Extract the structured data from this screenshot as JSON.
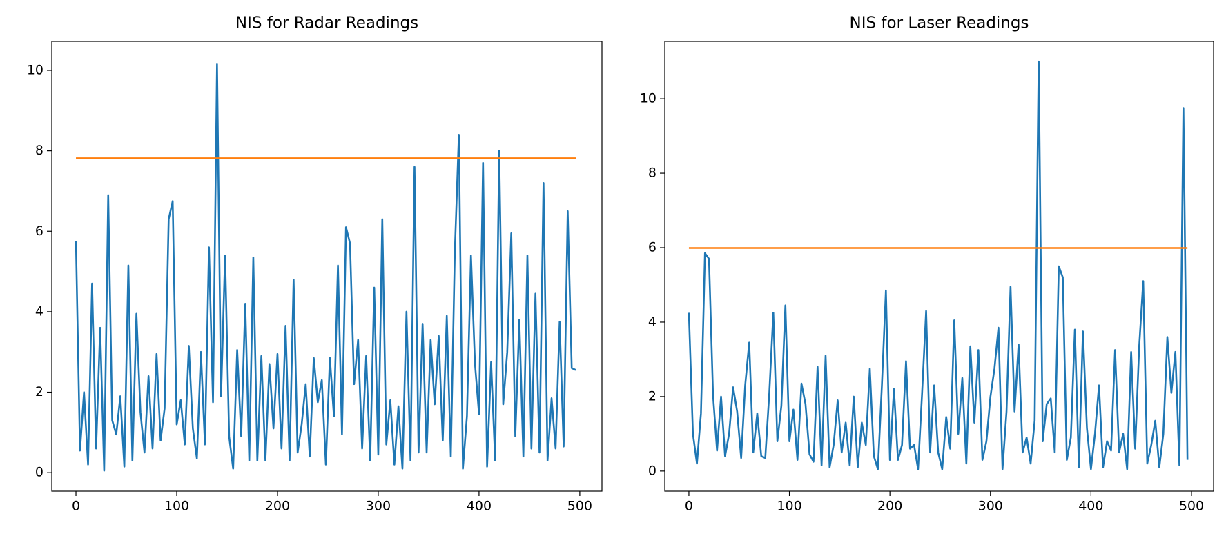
{
  "chart_data": [
    {
      "type": "line",
      "title": "NIS for Radar Readings",
      "xlim": [
        -24,
        522
      ],
      "xticks": [
        0,
        100,
        200,
        300,
        400,
        500
      ],
      "ylim": [
        -0.46,
        10.72
      ],
      "yticks": [
        0,
        2,
        4,
        6,
        8,
        10
      ],
      "series": [
        {
          "color": "#1f77b4",
          "x": [
            0,
            4,
            8,
            12,
            16,
            20,
            24,
            28,
            32,
            36,
            40,
            44,
            48,
            52,
            56,
            60,
            64,
            68,
            72,
            76,
            80,
            84,
            88,
            92,
            96,
            100,
            104,
            108,
            112,
            116,
            120,
            124,
            128,
            132,
            136,
            140,
            144,
            148,
            152,
            156,
            160,
            164,
            168,
            172,
            176,
            180,
            184,
            188,
            192,
            196,
            200,
            204,
            208,
            212,
            216,
            220,
            224,
            228,
            232,
            236,
            240,
            244,
            248,
            252,
            256,
            260,
            264,
            268,
            272,
            276,
            280,
            284,
            288,
            292,
            296,
            300,
            304,
            308,
            312,
            316,
            320,
            324,
            328,
            332,
            336,
            340,
            344,
            348,
            352,
            356,
            360,
            364,
            368,
            372,
            376,
            380,
            384,
            388,
            392,
            396,
            400,
            404,
            408,
            412,
            416,
            420,
            424,
            428,
            432,
            436,
            440,
            444,
            448,
            452,
            456,
            460,
            464,
            468,
            472,
            476,
            480,
            484,
            488,
            492,
            496
          ],
          "values": [
            5.75,
            0.55,
            2.0,
            0.2,
            4.7,
            0.6,
            3.6,
            0.05,
            6.9,
            1.3,
            0.95,
            1.9,
            0.15,
            5.15,
            0.3,
            3.95,
            1.5,
            0.5,
            2.4,
            0.6,
            2.95,
            0.8,
            1.6,
            6.3,
            6.75,
            1.2,
            1.8,
            0.7,
            3.15,
            1.1,
            0.35,
            3.0,
            0.7,
            5.6,
            1.75,
            10.15,
            1.9,
            5.4,
            0.9,
            0.1,
            3.05,
            0.9,
            4.2,
            0.3,
            5.35,
            0.3,
            2.9,
            0.3,
            2.7,
            1.1,
            2.95,
            0.6,
            3.65,
            0.3,
            4.8,
            0.5,
            1.2,
            2.2,
            0.4,
            2.85,
            1.75,
            2.3,
            0.2,
            2.85,
            1.4,
            5.15,
            0.95,
            6.1,
            5.7,
            2.2,
            3.3,
            0.6,
            2.9,
            0.3,
            4.6,
            0.45,
            6.3,
            0.7,
            1.8,
            0.2,
            1.65,
            0.1,
            4.0,
            0.3,
            7.6,
            0.5,
            3.7,
            0.5,
            3.3,
            1.7,
            3.4,
            0.8,
            3.9,
            0.4,
            5.5,
            8.4,
            0.1,
            1.4,
            5.4,
            2.7,
            1.45,
            7.7,
            0.15,
            2.75,
            0.3,
            8.0,
            1.7,
            3.0,
            5.95,
            0.9,
            3.8,
            0.4,
            5.4,
            0.6,
            4.45,
            0.5,
            7.2,
            0.3,
            1.85,
            0.6,
            3.75,
            0.65,
            6.5,
            2.6,
            2.55
          ]
        },
        {
          "color": "#ff7f0e",
          "x": [
            0,
            496
          ],
          "values": [
            7.815,
            7.815
          ]
        }
      ]
    },
    {
      "type": "line",
      "title": "NIS for Laser Readings",
      "xlim": [
        -24,
        522
      ],
      "xticks": [
        0,
        100,
        200,
        300,
        400,
        500
      ],
      "ylim": [
        -0.54,
        11.54
      ],
      "yticks": [
        0,
        2,
        4,
        6,
        8,
        10
      ],
      "series": [
        {
          "color": "#1f77b4",
          "x": [
            0,
            4,
            8,
            12,
            16,
            20,
            24,
            28,
            32,
            36,
            40,
            44,
            48,
            52,
            56,
            60,
            64,
            68,
            72,
            76,
            80,
            84,
            88,
            92,
            96,
            100,
            104,
            108,
            112,
            116,
            120,
            124,
            128,
            132,
            136,
            140,
            144,
            148,
            152,
            156,
            160,
            164,
            168,
            172,
            176,
            180,
            184,
            188,
            192,
            196,
            200,
            204,
            208,
            212,
            216,
            220,
            224,
            228,
            232,
            236,
            240,
            244,
            248,
            252,
            256,
            260,
            264,
            268,
            272,
            276,
            280,
            284,
            288,
            292,
            296,
            300,
            304,
            308,
            312,
            316,
            320,
            324,
            328,
            332,
            336,
            340,
            344,
            348,
            352,
            356,
            360,
            364,
            368,
            372,
            376,
            380,
            384,
            388,
            392,
            396,
            400,
            404,
            408,
            412,
            416,
            420,
            424,
            428,
            432,
            436,
            440,
            444,
            448,
            452,
            456,
            460,
            464,
            468,
            472,
            476,
            480,
            484,
            488,
            492,
            496
          ],
          "values": [
            4.25,
            1.0,
            0.2,
            1.55,
            5.85,
            5.7,
            2.05,
            0.55,
            2.0,
            0.4,
            1.0,
            2.25,
            1.6,
            0.35,
            2.3,
            3.45,
            0.5,
            1.55,
            0.4,
            0.35,
            2.1,
            4.25,
            0.8,
            1.75,
            4.45,
            0.8,
            1.65,
            0.3,
            2.35,
            1.8,
            0.45,
            0.25,
            2.8,
            0.15,
            3.1,
            0.1,
            0.7,
            1.9,
            0.5,
            1.3,
            0.15,
            2.0,
            0.1,
            1.3,
            0.7,
            2.75,
            0.4,
            0.05,
            2.3,
            4.85,
            0.3,
            2.2,
            0.3,
            0.7,
            2.95,
            0.6,
            0.7,
            0.05,
            2.1,
            4.3,
            0.5,
            2.3,
            0.5,
            0.05,
            1.45,
            0.6,
            4.05,
            1.0,
            2.5,
            0.2,
            3.35,
            1.3,
            3.25,
            0.3,
            0.8,
            2.0,
            2.75,
            3.85,
            0.05,
            1.6,
            4.95,
            1.6,
            3.4,
            0.5,
            0.9,
            0.2,
            1.35,
            11.0,
            0.8,
            1.8,
            1.95,
            0.5,
            5.5,
            5.2,
            0.3,
            0.9,
            3.8,
            0.1,
            3.75,
            1.15,
            0.05,
            1.0,
            2.3,
            0.1,
            0.8,
            0.55,
            3.25,
            0.5,
            1.0,
            0.05,
            3.2,
            0.6,
            3.35,
            5.1,
            0.2,
            0.7,
            1.35,
            0.1,
            1.0,
            3.6,
            2.1,
            3.2,
            0.15,
            9.75,
            0.3
          ]
        },
        {
          "color": "#ff7f0e",
          "x": [
            0,
            496
          ],
          "values": [
            5.991,
            5.991
          ]
        }
      ]
    }
  ]
}
